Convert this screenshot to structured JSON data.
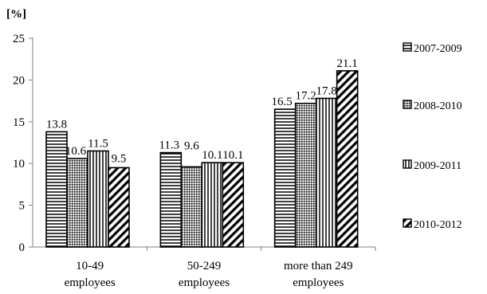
{
  "chart_data": {
    "type": "bar",
    "title": "",
    "ylabel": "[%]",
    "xlabel": "",
    "ylim": [
      0,
      25
    ],
    "yticks": [
      0,
      5,
      10,
      15,
      20,
      25
    ],
    "grid": false,
    "legend": "right",
    "categories": [
      [
        "10-49",
        "employees"
      ],
      [
        "50-249",
        "employees"
      ],
      [
        "more than 249",
        "employees"
      ]
    ],
    "series": [
      {
        "name": "2007-2009",
        "values": [
          13.8,
          11.3,
          16.5
        ],
        "labels": [
          "13.8",
          "11.3",
          "16.5"
        ],
        "pattern": "hlines"
      },
      {
        "name": "2008-2010",
        "values": [
          10.6,
          9.6,
          17.2
        ],
        "labels": [
          "10.6",
          "9.6",
          "17.2"
        ],
        "pattern": "dots"
      },
      {
        "name": "2009-2011",
        "values": [
          11.5,
          10.1,
          17.8
        ],
        "labels": [
          "11.5",
          "10.1",
          "17.8"
        ],
        "pattern": "vlines"
      },
      {
        "name": "2010-2012",
        "values": [
          9.5,
          10.1,
          21.1
        ],
        "labels": [
          "9.5",
          "10.1",
          "21.1"
        ],
        "pattern": "diag"
      }
    ]
  }
}
